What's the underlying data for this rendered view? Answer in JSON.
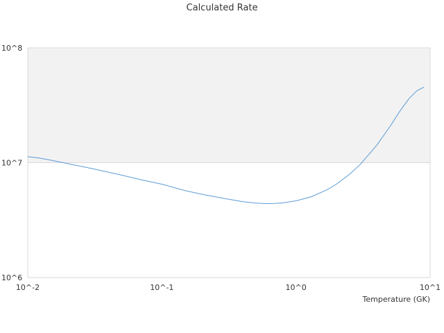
{
  "chart_data": {
    "type": "line",
    "title": "Calculated Rate",
    "xlabel": "Temperature (GK)",
    "ylabel": "",
    "xscale": "log",
    "yscale": "log",
    "xlim": [
      0.01,
      10
    ],
    "ylim": [
      1000000,
      100000000
    ],
    "x_tick_labels": [
      "10^-2",
      "10^-1",
      "10^0",
      "10^1"
    ],
    "y_tick_labels": [
      "10^6",
      "10^7",
      "10^8"
    ],
    "grid": true,
    "colors": {
      "line": "#5b9bd5",
      "band": "#f2f2f2",
      "grid": "#d9d9d9"
    },
    "series": [
      {
        "x": [
          0.01,
          0.012,
          0.015,
          0.02,
          0.03,
          0.05,
          0.07,
          0.1,
          0.15,
          0.2,
          0.3,
          0.4,
          0.5,
          0.6,
          0.7,
          0.8,
          1.0,
          1.3,
          1.7,
          2.0,
          2.5,
          3.0,
          4.0,
          5.0,
          6.0,
          7.0,
          8.0,
          9.0
        ],
        "y": [
          11300000,
          11000000,
          10500000,
          9800000,
          8900000,
          7800000,
          7100000,
          6500000,
          5700000,
          5300000,
          4850000,
          4580000,
          4450000,
          4400000,
          4420000,
          4470000,
          4650000,
          5050000,
          5800000,
          6500000,
          7900000,
          9600000,
          14200000,
          20500000,
          28500000,
          36500000,
          42500000,
          45500000
        ]
      }
    ]
  }
}
